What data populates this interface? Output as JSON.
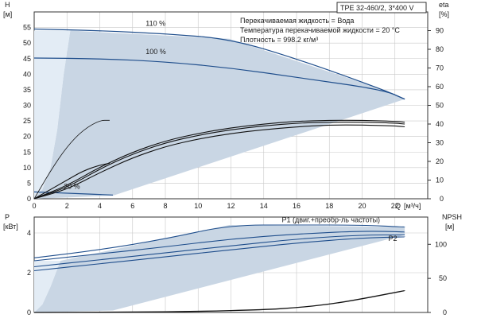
{
  "header": {
    "model": "TPE 32-460/2, 3*400 V",
    "notes": [
      "Перекачиваемая жидкость = Вода",
      "Температура перекачиваемой жидкости = 20 °C",
      "Плотность = 998.2 кг/м³"
    ]
  },
  "colors": {
    "curve": "#1f4e8c",
    "envelope": "#c9d6e4",
    "envelope_inner": "#e3ecf5",
    "frame": "#333333"
  },
  "chart_data": [
    {
      "type": "line",
      "name": "head-efficiency",
      "ylabel_left": "H",
      "ylabel_left_unit": "[м]",
      "ylabel_right": "eta",
      "ylabel_right_unit": "[%]",
      "xlabel": "Q",
      "xlabel_unit": "[м³/ч]",
      "xlim": [
        0,
        24
      ],
      "ylim_left": [
        0,
        60
      ],
      "ylim_right": [
        0,
        100
      ],
      "x_ticks": [
        0,
        2,
        4,
        6,
        8,
        10,
        12,
        14,
        16,
        18,
        20,
        22
      ],
      "y_left_ticks": [
        0,
        5,
        10,
        15,
        20,
        25,
        30,
        35,
        40,
        45,
        50,
        55
      ],
      "y_right_ticks": [
        0,
        10,
        20,
        30,
        40,
        50,
        60,
        70,
        80,
        90
      ],
      "grid": true,
      "envelope": [
        [
          0,
          0
        ],
        [
          0.5,
          3
        ],
        [
          1,
          10
        ],
        [
          1.4,
          22
        ],
        [
          1.8,
          40
        ],
        [
          2.2,
          54
        ],
        [
          11.9,
          51.4
        ],
        [
          21.3,
          35
        ],
        [
          22.6,
          32
        ],
        [
          4.8,
          1
        ],
        [
          0,
          0
        ]
      ],
      "curve_labels": [
        {
          "text": "110 %",
          "x": 6.8,
          "y": 55.5
        },
        {
          "text": "100 %",
          "x": 6.8,
          "y": 46.5
        },
        {
          "text": "20 %",
          "x": 1.8,
          "y": 3.2
        }
      ],
      "head_curves": [
        {
          "x": [
            0,
            4,
            8,
            11.9,
            16,
            21.3,
            22.6
          ],
          "y": [
            54.5,
            54,
            53,
            51.4,
            45,
            35,
            32
          ]
        },
        {
          "x": [
            0,
            4,
            8,
            12,
            16,
            21.3,
            22.6
          ],
          "y": [
            45.2,
            45,
            44,
            42,
            39,
            35,
            32
          ]
        },
        {
          "x": [
            0,
            2,
            4.8
          ],
          "y": [
            2.2,
            1.8,
            1.2
          ]
        }
      ],
      "efficiency_curves": [
        {
          "axis": "right",
          "x": [
            0,
            1,
            2,
            3,
            4,
            4.6
          ],
          "y": [
            0,
            15,
            28,
            37,
            42,
            42
          ]
        },
        {
          "axis": "right",
          "x": [
            0,
            2,
            4,
            6,
            8,
            10,
            12,
            14,
            16,
            18,
            20,
            22,
            22.6
          ],
          "y": [
            0,
            7,
            17,
            25,
            31,
            35,
            38,
            40,
            41.5,
            42,
            42,
            41.5,
            41
          ]
        },
        {
          "axis": "right",
          "x": [
            0,
            2,
            4,
            6,
            8,
            10,
            12,
            14,
            16,
            18,
            20,
            22,
            22.6
          ],
          "y": [
            0,
            6,
            16,
            24,
            30,
            34,
            37,
            39,
            40.5,
            41,
            41,
            40.5,
            40
          ]
        },
        {
          "axis": "right",
          "x": [
            0,
            2,
            4,
            6,
            8,
            10,
            12,
            14,
            16,
            18,
            20,
            22,
            22.6
          ],
          "y": [
            0,
            5,
            14,
            22,
            28,
            32,
            35,
            37,
            38.5,
            39.5,
            39.5,
            39,
            38.5
          ]
        },
        {
          "axis": "right",
          "x": [
            0,
            2,
            3,
            4,
            4.6
          ],
          "y": [
            0,
            10,
            15,
            18,
            19
          ]
        }
      ]
    },
    {
      "type": "line",
      "name": "power-npsh",
      "ylabel_left": "P",
      "ylabel_left_unit": "[кВт]",
      "ylabel_right": "NPSH",
      "ylabel_right_unit": "[м]",
      "xlim": [
        0,
        24
      ],
      "ylim_left": [
        0,
        4.8
      ],
      "ylim_right": [
        0,
        140
      ],
      "y_left_ticks": [
        0,
        2,
        4
      ],
      "y_right_ticks": [
        0,
        50,
        100
      ],
      "grid": true,
      "envelope": [
        [
          0,
          0
        ],
        [
          0.5,
          0.4
        ],
        [
          1,
          1.3
        ],
        [
          1.6,
          2.6
        ],
        [
          11.9,
          4.4
        ],
        [
          22.6,
          4.3
        ],
        [
          22.6,
          3.9
        ],
        [
          4.8,
          0.1
        ],
        [
          0,
          0
        ]
      ],
      "series_labels": [
        {
          "text": "P1 (двиг.+преобр-ль частоты)",
          "x": 15.1,
          "y": 4.55
        },
        {
          "text": "P2",
          "x": 21.6,
          "y": 3.6
        }
      ],
      "power_curves": [
        {
          "x": [
            0,
            4,
            8,
            11.9,
            16,
            20,
            22.6
          ],
          "y": [
            2.75,
            3.15,
            3.7,
            4.4,
            4.4,
            4.4,
            4.3
          ]
        },
        {
          "x": [
            0,
            4,
            8,
            12,
            16,
            20,
            22.6
          ],
          "y": [
            2.6,
            2.95,
            3.3,
            3.7,
            3.95,
            4.1,
            4.05
          ]
        },
        {
          "x": [
            0,
            4,
            8,
            12,
            16,
            20,
            22.6
          ],
          "y": [
            2.3,
            2.65,
            3.0,
            3.35,
            3.7,
            3.9,
            3.9
          ]
        },
        {
          "x": [
            0,
            4,
            8,
            12,
            16,
            20,
            22.6
          ],
          "y": [
            2.1,
            2.45,
            2.8,
            3.15,
            3.5,
            3.75,
            3.8
          ]
        }
      ],
      "npsh_curve": {
        "axis": "right",
        "x": [
          0,
          6,
          10,
          14,
          16,
          18,
          20,
          22.6
        ],
        "y": [
          0,
          0.5,
          1.5,
          4,
          7,
          12,
          20,
          32
        ]
      }
    }
  ]
}
